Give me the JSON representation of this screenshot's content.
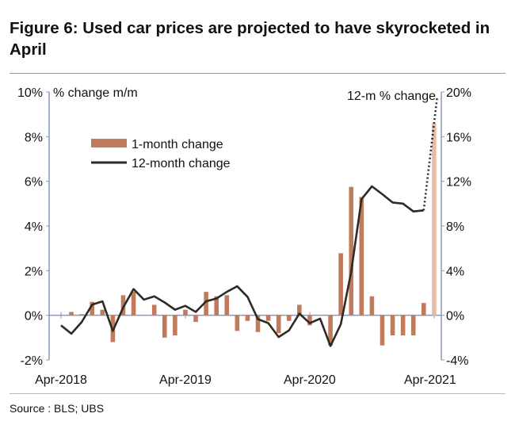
{
  "title": "Figure 6: Used car prices are projected to have skyrocketed in April",
  "source": "Source : BLS; UBS",
  "chart_data": {
    "type": "bar+line",
    "left_axis": {
      "label": "% change m/m",
      "ylim": [
        -2,
        10
      ],
      "ticks": [
        "-2%",
        "0%",
        "2%",
        "4%",
        "6%",
        "8%",
        "10%"
      ],
      "tick_values": [
        -2,
        0,
        2,
        4,
        6,
        8,
        10
      ]
    },
    "right_axis": {
      "label": "12-m % change",
      "ylim": [
        -4,
        20
      ],
      "ticks": [
        "-4%",
        "0%",
        "4%",
        "8%",
        "12%",
        "16%",
        "20%"
      ],
      "tick_values": [
        -4,
        0,
        4,
        8,
        12,
        16,
        20
      ]
    },
    "x_tick_labels": [
      "Apr-2018",
      "Apr-2019",
      "Apr-2020",
      "Apr-2021"
    ],
    "x": [
      "Apr-2018",
      "May-2018",
      "Jun-2018",
      "Jul-2018",
      "Aug-2018",
      "Sep-2018",
      "Oct-2018",
      "Nov-2018",
      "Dec-2018",
      "Jan-2019",
      "Feb-2019",
      "Mar-2019",
      "Apr-2019",
      "May-2019",
      "Jun-2019",
      "Jul-2019",
      "Aug-2019",
      "Sep-2019",
      "Oct-2019",
      "Nov-2019",
      "Dec-2019",
      "Jan-2020",
      "Feb-2020",
      "Mar-2020",
      "Apr-2020",
      "May-2020",
      "Jun-2020",
      "Jul-2020",
      "Aug-2020",
      "Sep-2020",
      "Oct-2020",
      "Nov-2020",
      "Dec-2020",
      "Jan-2021",
      "Feb-2021",
      "Mar-2021",
      "Apr-2021"
    ],
    "series": [
      {
        "name": "1-month change",
        "type": "bar",
        "axis": "left",
        "color": "#c07b5c",
        "projected_color": "#e6bca8",
        "values": [
          0,
          0.15,
          0.05,
          0.6,
          0.25,
          -1.2,
          0.9,
          1.05,
          0,
          0.47,
          -1.0,
          -0.9,
          0.25,
          -0.3,
          1.05,
          0.85,
          0.9,
          -0.7,
          -0.25,
          -0.75,
          -0.25,
          -0.8,
          -0.25,
          0.47,
          -0.45,
          0,
          -1.35,
          2.78,
          5.75,
          5.3,
          0.85,
          -1.35,
          -0.9,
          -0.9,
          -0.9,
          0.55,
          8.6
        ],
        "projected_from_index": 36
      },
      {
        "name": "12-month change",
        "type": "line",
        "axis": "right",
        "color": "#2e2a26",
        "values": [
          -0.9,
          -1.65,
          -0.6,
          0.95,
          1.25,
          -1.4,
          0.7,
          2.35,
          1.4,
          1.7,
          1.15,
          0.5,
          0.85,
          0.3,
          1.25,
          1.5,
          2.1,
          2.6,
          1.65,
          -0.35,
          -0.7,
          -1.95,
          -1.35,
          0.15,
          -0.7,
          -0.3,
          -2.75,
          -0.8,
          3.9,
          10.4,
          11.55,
          10.85,
          10.1,
          10.0,
          9.3,
          9.4,
          19.6
        ],
        "projected_from_index": 36
      }
    ],
    "legend": "top-left",
    "grid": false
  }
}
